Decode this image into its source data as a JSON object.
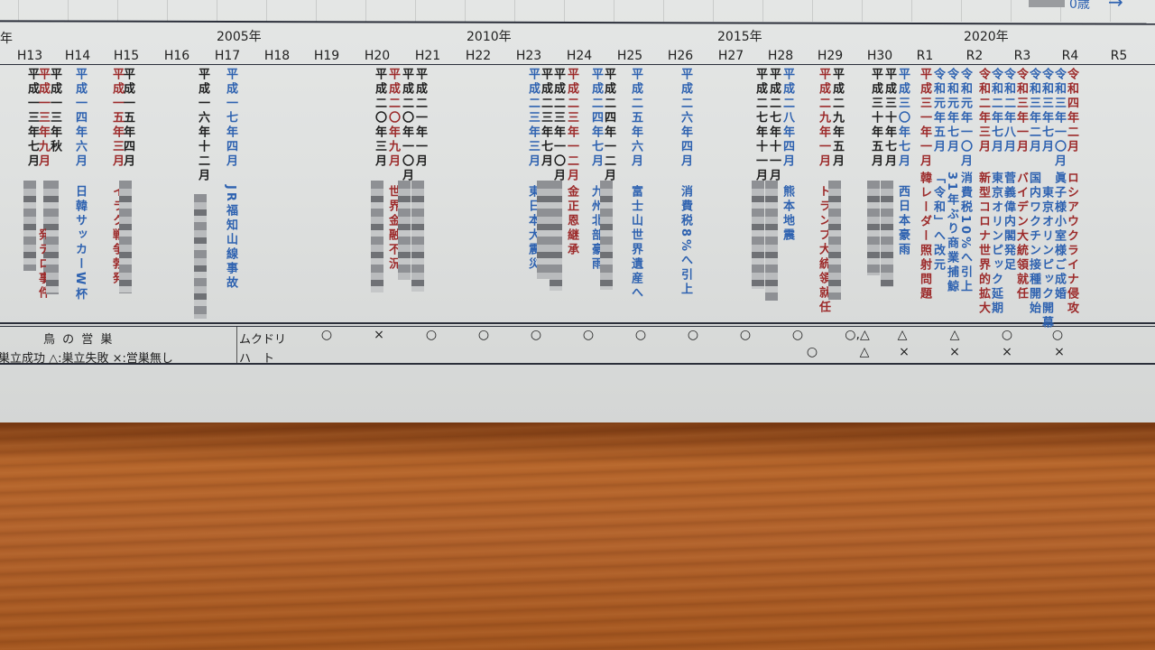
{
  "header": {
    "partial_year_label": "年",
    "year_labels": [
      "2005年",
      "2010年",
      "2015年",
      "2020年"
    ],
    "era_labels": [
      "H13",
      "H14",
      "H15",
      "H16",
      "H17",
      "H18",
      "H19",
      "H20",
      "H21",
      "H22",
      "H23",
      "H24",
      "H25",
      "H26",
      "H27",
      "H28",
      "H29",
      "H30",
      "R1",
      "R2",
      "R3",
      "R4",
      "R5"
    ],
    "age_label": "0歳",
    "age_arrow": "→"
  },
  "colors": {
    "red": "#9c2a2a",
    "blue": "#2e62b0",
    "black": "#1e1e1e",
    "paper": "#dfe1e0",
    "wood": "#b0612b"
  },
  "events": [
    {
      "date": "平成一三年七月",
      "text": "",
      "color": "black",
      "blurred": true
    },
    {
      "date": "平成一三年九月",
      "text": "発テロ事件",
      "color": "red",
      "blurred": true
    },
    {
      "date": "平成一三年秋",
      "text": "",
      "color": "black",
      "blurred": true
    },
    {
      "date": "平成一四年六月",
      "text": "日韓サッカーW杯",
      "color": "blue"
    },
    {
      "date": "平成一五年三月",
      "text": "イラク戦争勃発",
      "color": "red"
    },
    {
      "date": "平成一五年四月",
      "text": "",
      "color": "black",
      "blurred": true
    },
    {
      "date": "平成一六年十二月",
      "text": "",
      "color": "black",
      "blurred": true
    },
    {
      "date": "平成一七年四月",
      "text": "JR福知山線事故",
      "color": "blue"
    },
    {
      "date": "平成二〇年三月",
      "text": "",
      "color": "black",
      "blurred": true
    },
    {
      "date": "平成二〇年九月",
      "text": "世界金融不況",
      "color": "red"
    },
    {
      "date": "平成二〇年一〇月",
      "text": "",
      "color": "black",
      "blurred": true
    },
    {
      "date": "平成二一年一月",
      "text": "",
      "color": "black",
      "blurred": true
    },
    {
      "date": "平成二三年三月",
      "text": "東日本大震災",
      "color": "blue"
    },
    {
      "date": "平成二三年七月",
      "text": "",
      "color": "black",
      "blurred": true
    },
    {
      "date": "平成二三年一〇月",
      "text": "",
      "color": "black",
      "blurred": true
    },
    {
      "date": "平成二三年一二月",
      "text": "金正恩継承",
      "color": "red"
    },
    {
      "date": "平成二四年七月",
      "text": "九州北部豪雨",
      "color": "blue"
    },
    {
      "date": "平成二四年一二月",
      "text": "",
      "color": "black",
      "blurred": true
    },
    {
      "date": "平成二五年六月",
      "text": "富士山世界遺産へ",
      "color": "blue"
    },
    {
      "date": "平成二六年四月",
      "text": "消費税8%へ引上",
      "color": "blue"
    },
    {
      "date": "平成二七年十一月",
      "text": "",
      "color": "black",
      "blurred": true
    },
    {
      "date": "平成二七年十一月",
      "text": "",
      "color": "black",
      "blurred": true
    },
    {
      "date": "平成二八年四月",
      "text": "熊本地震",
      "color": "blue"
    },
    {
      "date": "平成二九年一月",
      "text": "トランプ大統領就任",
      "color": "red"
    },
    {
      "date": "平成二九年五月",
      "text": "",
      "color": "black",
      "blurred": true
    },
    {
      "date": "平成三十年五月",
      "text": "",
      "color": "black",
      "blurred": true
    },
    {
      "date": "平成三十年七月",
      "text": "",
      "color": "black",
      "blurred": true
    },
    {
      "date": "平成三〇年七月",
      "text": "西日本豪雨",
      "color": "blue"
    },
    {
      "date": "平成三一年一月",
      "text": "韓レーダー照射問題",
      "color": "red"
    },
    {
      "date": "令和元年五月",
      "text": "「令和」へ改元",
      "color": "blue"
    },
    {
      "date": "令和元年七月",
      "text": "31年ぶり商業捕鯨",
      "color": "blue"
    },
    {
      "date": "令和元年一〇月",
      "text": "消費税10%へ引上",
      "color": "blue"
    },
    {
      "date": "令和二年三月",
      "text": "新型コロナ世界的拡大",
      "color": "red"
    },
    {
      "date": "令和二年七月",
      "text": "東京オリンピック延期",
      "color": "blue"
    },
    {
      "date": "令和二年八月",
      "text": "菅義偉内閣発足",
      "color": "blue"
    },
    {
      "date": "令和三年一月",
      "text": "バイデン大統領就任",
      "color": "red"
    },
    {
      "date": "令和三年二月",
      "text": "国内ワクチン接種開始",
      "color": "blue"
    },
    {
      "date": "令和三年七月",
      "text": "東京オリンピック開幕",
      "color": "blue"
    },
    {
      "date": "令和三年一〇月",
      "text": "眞子様小室様ご成婚",
      "color": "blue"
    },
    {
      "date": "令和四年二月",
      "text": "ロシアウクライナ侵攻",
      "color": "red"
    }
  ],
  "nesting": {
    "title": "鳥 の 営 巣",
    "legend": "巣立成功 △:巣立失敗 ×:営巣無し",
    "rows": [
      {
        "bird": "ムクドリ",
        "marks": [
          "○",
          "×",
          "○",
          "○",
          "○",
          "○",
          "○",
          "○",
          "○",
          "○",
          "○,△",
          "△",
          "△",
          "○",
          "○"
        ]
      },
      {
        "bird": "ハ　ト",
        "marks": [
          "○",
          "△",
          "×",
          "×",
          "×",
          "×"
        ]
      }
    ]
  }
}
